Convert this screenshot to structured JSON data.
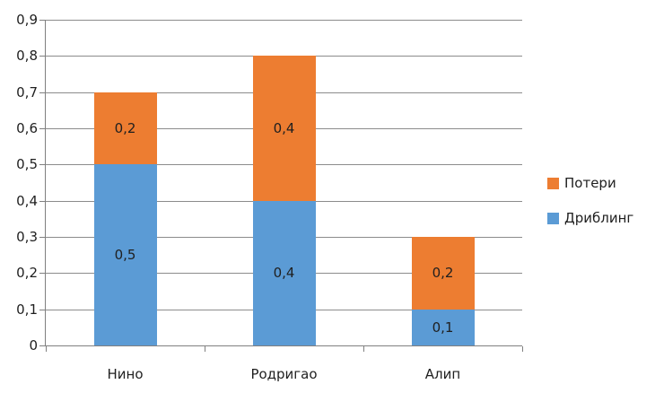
{
  "chart_data": {
    "type": "bar",
    "stacked": true,
    "title": "",
    "xlabel": "",
    "ylabel": "",
    "categories": [
      "Нино",
      "Родригао",
      "Алип"
    ],
    "series": [
      {
        "name": "Потери",
        "color": "#ED7D31",
        "values": [
          0.2,
          0.4,
          0.2
        ],
        "labels": [
          "0,2",
          "0,4",
          "0,2"
        ]
      },
      {
        "name": "Дриблинг",
        "color": "#5B9BD5",
        "values": [
          0.5,
          0.4,
          0.1
        ],
        "labels": [
          "0,5",
          "0,4",
          "0,1"
        ]
      }
    ],
    "stack_order_bottom_to_top": [
      "Дриблинг",
      "Потери"
    ],
    "totals": [
      0.7,
      0.8,
      0.3
    ],
    "ylim": [
      0,
      0.9
    ],
    "ytick_step": 0.1,
    "ytick_labels_top_to_bottom": [
      "0,9",
      "0,8",
      "0,7",
      "0,6",
      "0,5",
      "0,4",
      "0,3",
      "0,2",
      "0,1",
      "0"
    ],
    "grid": true,
    "legend_position": "right",
    "colors": {
      "gridline": "#8C8C8C",
      "axis": "#808080",
      "text": "#1F1F1F",
      "background": "#FFFFFF"
    }
  }
}
